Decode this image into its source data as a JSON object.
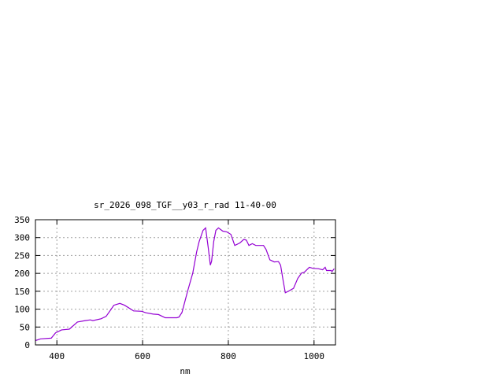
{
  "chart_data": {
    "type": "line",
    "title": "sr_2026_098_TGF__y03_r_rad 11-40-00",
    "xlabel": "nm",
    "ylabel": "",
    "xlim": [
      350,
      1050
    ],
    "ylim": [
      0,
      350
    ],
    "xticks": [
      400,
      600,
      800,
      1000
    ],
    "yticks": [
      0,
      50,
      100,
      150,
      200,
      250,
      300,
      350
    ],
    "grid": true,
    "line_color": "#9400d3",
    "series": [
      {
        "x": [
          347,
          362,
          387,
          397,
          411,
          429,
          448,
          466,
          478,
          484,
          503,
          515,
          533,
          547,
          558,
          579,
          598,
          607,
          625,
          637,
          653,
          680,
          685,
          692,
          705,
          717,
          726,
          732,
          741,
          747,
          753,
          758,
          761,
          766,
          771,
          777,
          787,
          796,
          806,
          815,
          827,
          836,
          842,
          848,
          856,
          864,
          882,
          888,
          897,
          907,
          917,
          922,
          928,
          933,
          940,
          952,
          962,
          971,
          977,
          989,
          998,
          1010,
          1020,
          1026,
          1029,
          1040,
          1042,
          1047
        ],
        "y": [
          12,
          17,
          19,
          34,
          42,
          44,
          64,
          68,
          70,
          68,
          73,
          80,
          111,
          116,
          111,
          95,
          94,
          90,
          86,
          85,
          76,
          76,
          78,
          91,
          150,
          201,
          260,
          289,
          320,
          327,
          274,
          223,
          234,
          289,
          320,
          327,
          318,
          316,
          309,
          278,
          285,
          295,
          293,
          278,
          283,
          278,
          278,
          267,
          238,
          232,
          233,
          223,
          179,
          146,
          150,
          158,
          186,
          201,
          203,
          217,
          214,
          213,
          210,
          217,
          208,
          208,
          205,
          213
        ]
      }
    ]
  }
}
